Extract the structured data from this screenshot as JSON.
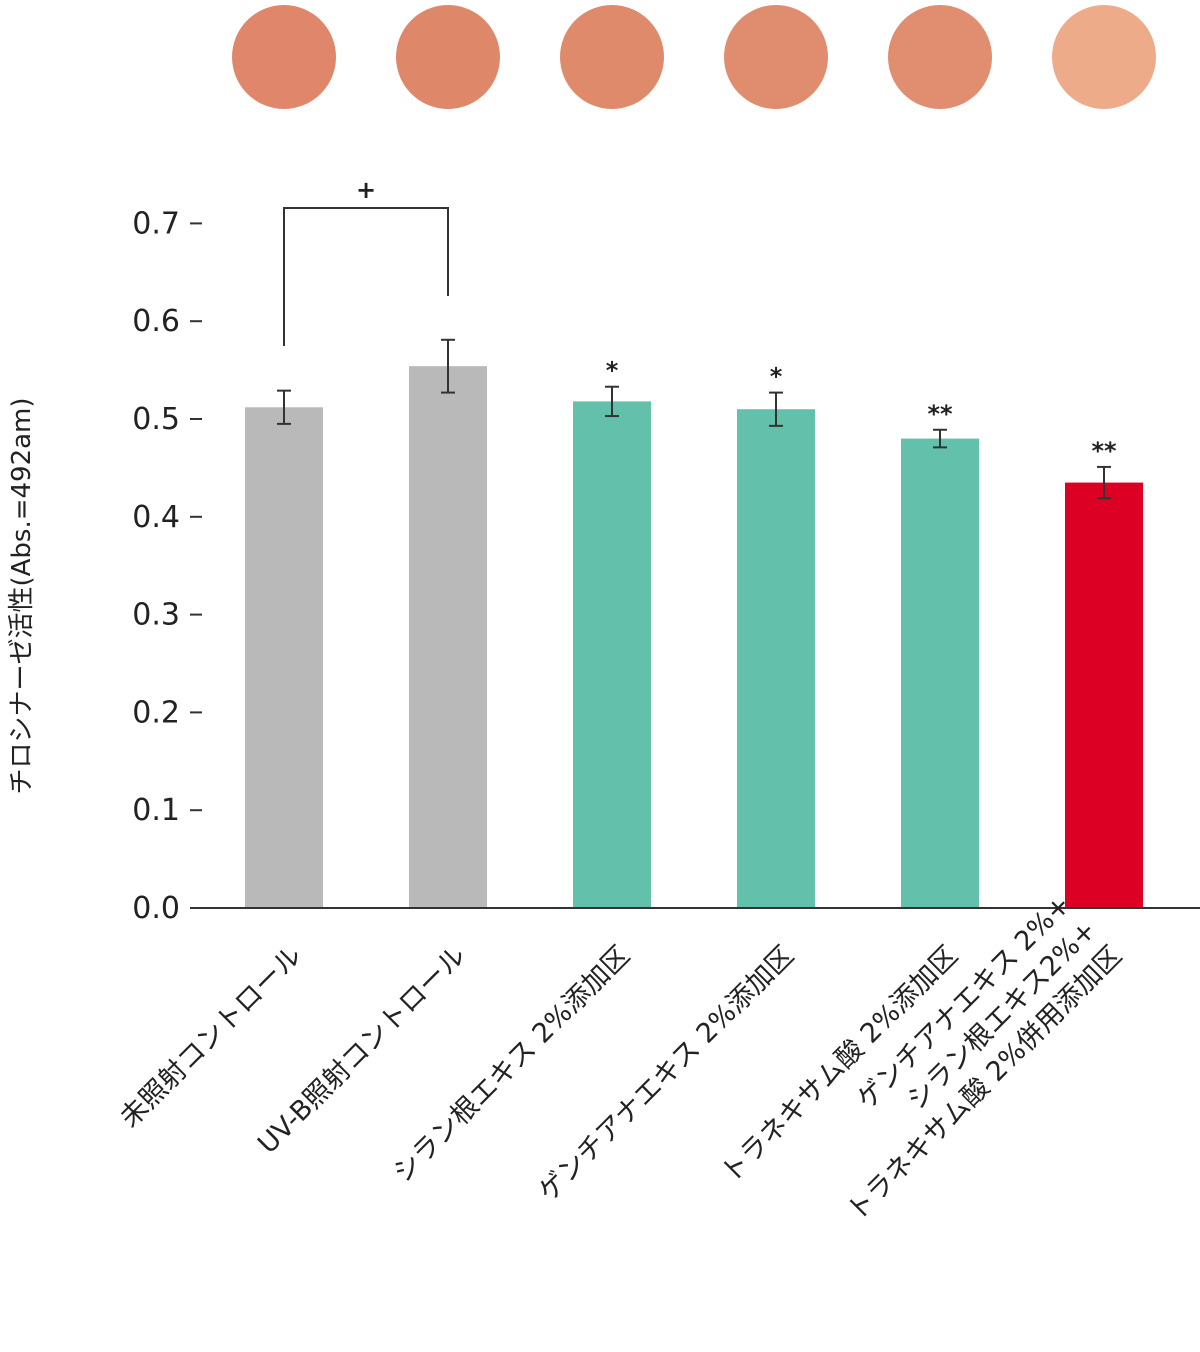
{
  "chart_data": {
    "type": "bar",
    "title": "",
    "xlabel": "",
    "ylabel": "チロシナーゼ活性(Abs.=492am)",
    "ylim": [
      0,
      0.7
    ],
    "yticks": [
      "0.0",
      "0.1",
      "0.2",
      "0.3",
      "0.4",
      "0.5",
      "0.6",
      "0.7"
    ],
    "grid": false,
    "categories": [
      [
        "未照射コントロール"
      ],
      [
        "UV-B照射コントロール"
      ],
      [
        "シラン根エキス 2%添加区"
      ],
      [
        "ゲンチアナエキス 2%添加区"
      ],
      [
        "トラネキサム酸 2%添加区"
      ],
      [
        "ゲンチアナエキス 2%+",
        "シラン根エキス2%+",
        "トラネキサム酸 2%併用添加区"
      ]
    ],
    "values": [
      0.512,
      0.554,
      0.518,
      0.51,
      0.48,
      0.435
    ],
    "errors": [
      0.017,
      0.027,
      0.015,
      0.017,
      0.009,
      0.016
    ],
    "significance": [
      "",
      "",
      "*",
      "*",
      "**",
      "**"
    ],
    "bracket": {
      "from": 0,
      "to": 1,
      "label": "+"
    },
    "colors": [
      "#b9b9b9",
      "#b9b9b9",
      "#63c1ab",
      "#63c1ab",
      "#63c1ab",
      "#dc0024"
    ],
    "swatch_colors": [
      "#e0866a",
      "#df8769",
      "#e08a6c",
      "#e08c6e",
      "#e08d70",
      "#eeab8a"
    ]
  }
}
